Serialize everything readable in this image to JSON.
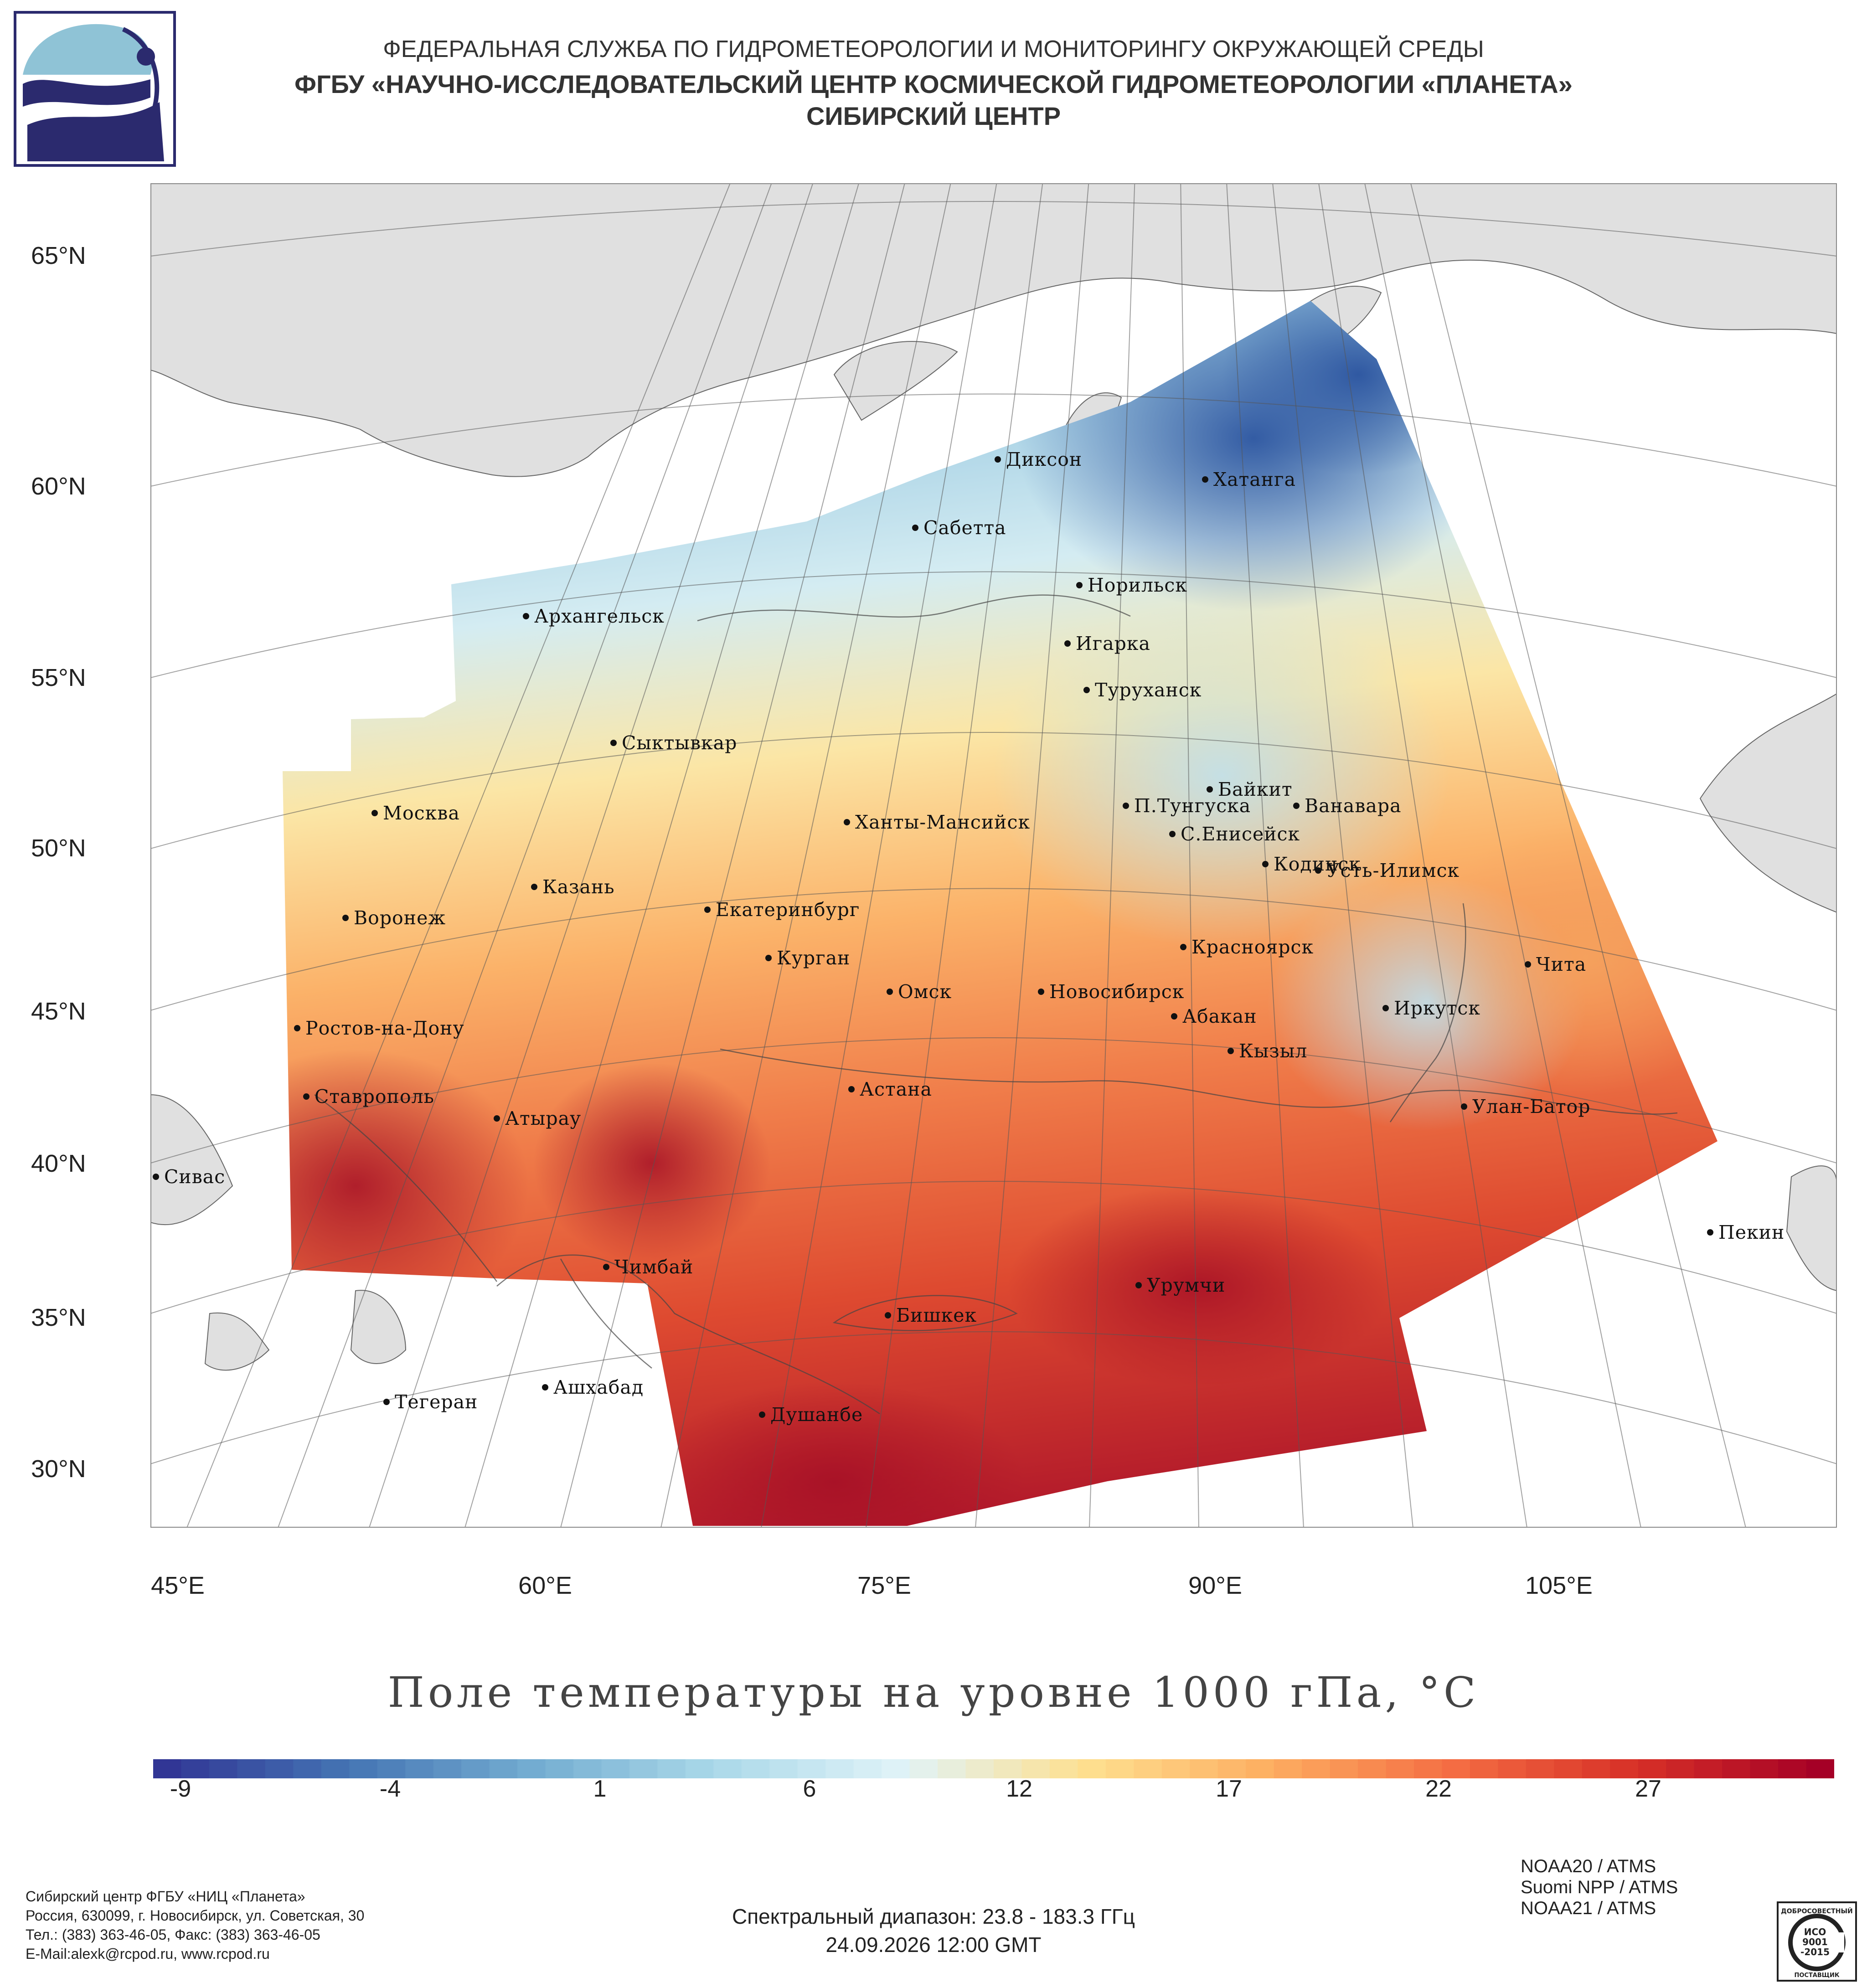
{
  "header": {
    "line1": "ФЕДЕРАЛЬНАЯ СЛУЖБА ПО ГИДРОМЕТЕОРОЛОГИИ И МОНИТОРИНГУ ОКРУЖАЮЩЕЙ СРЕДЫ",
    "line2": "ФГБУ «НАУЧНО-ИССЛЕДОВАТЕЛЬСКИЙ ЦЕНТР КОСМИЧЕСКОЙ ГИДРОМЕТЕОРОЛОГИИ «ПЛАНЕТА»",
    "line3": "СИБИРСКИЙ ЦЕНТР"
  },
  "map": {
    "lat_labels": [
      "65°N",
      "60°N",
      "55°N",
      "50°N",
      "45°N",
      "40°N",
      "35°N",
      "30°N"
    ],
    "lon_labels": [
      "45°E",
      "60°E",
      "75°E",
      "90°E",
      "105°E"
    ],
    "cities": [
      {
        "name": "Диксон"
      },
      {
        "name": "Хатанга"
      },
      {
        "name": "Сабетта"
      },
      {
        "name": "Норильск"
      },
      {
        "name": "Архангельск"
      },
      {
        "name": "Игарка"
      },
      {
        "name": "Туруханск"
      },
      {
        "name": "Сыктывкар"
      },
      {
        "name": "Байкит"
      },
      {
        "name": "П.Тунгуска"
      },
      {
        "name": "Ванавара"
      },
      {
        "name": "Москва"
      },
      {
        "name": "Ханты-Мансийск"
      },
      {
        "name": "С.Енисейск"
      },
      {
        "name": "Кодинск"
      },
      {
        "name": "Усть-Илимск"
      },
      {
        "name": "Казань"
      },
      {
        "name": "Екатеринбург"
      },
      {
        "name": "Воронеж"
      },
      {
        "name": "Красноярск"
      },
      {
        "name": "Курган"
      },
      {
        "name": "Чита"
      },
      {
        "name": "Омск"
      },
      {
        "name": "Новосибирск"
      },
      {
        "name": "Иркутск"
      },
      {
        "name": "Абакан"
      },
      {
        "name": "Ростов-на-Дону"
      },
      {
        "name": "Кызыл"
      },
      {
        "name": "Астана"
      },
      {
        "name": "Ставрополь"
      },
      {
        "name": "Улан-Батор"
      },
      {
        "name": "Атырау"
      },
      {
        "name": "Сивас"
      },
      {
        "name": "Пекин"
      },
      {
        "name": "Чимбай"
      },
      {
        "name": "Урумчи"
      },
      {
        "name": "Бишкек"
      },
      {
        "name": "Ашхабад"
      },
      {
        "name": "Тегеран"
      },
      {
        "name": "Душанбе"
      }
    ]
  },
  "field_title": "Поле температуры на уровне 1000 гПа, °С",
  "colorbar": {
    "min": -11,
    "max": 32,
    "ticks": [
      "-9",
      "-4",
      "1",
      "6",
      "12",
      "17",
      "22",
      "27"
    ],
    "colors": [
      "#313695",
      "#4575b4",
      "#74add1",
      "#abd9e9",
      "#e0f3f8",
      "#fee090",
      "#fdae61",
      "#f46d43",
      "#d73027",
      "#a50026"
    ]
  },
  "footer": {
    "org_line1": "Сибирский центр ФГБУ «НИЦ «Планета»",
    "org_line2": "Россия, 630099, г. Новосибирск, ул. Советская, 30",
    "org_line3": "Тел.: (383) 363-46-05, Факс: (383) 363-46-05",
    "org_line4": "E-Mail:alexk@rcpod.ru, www.rcpod.ru",
    "spectral": "Спектральный диапазон: 23.8 - 183.3 ГГц",
    "datetime": "24.09.2026 12:00 GMT",
    "satellites": [
      "NOAA20 / ATMS",
      "Suomi NPP / ATMS",
      "NOAA21 / ATMS"
    ],
    "iso_badge": {
      "top": "ДОБРОСОВЕСТНЫЙ",
      "mid1": "ИСО",
      "mid2": "9001",
      "mid3": "-2015",
      "bottom": "ПОСТАВЩИК"
    }
  }
}
